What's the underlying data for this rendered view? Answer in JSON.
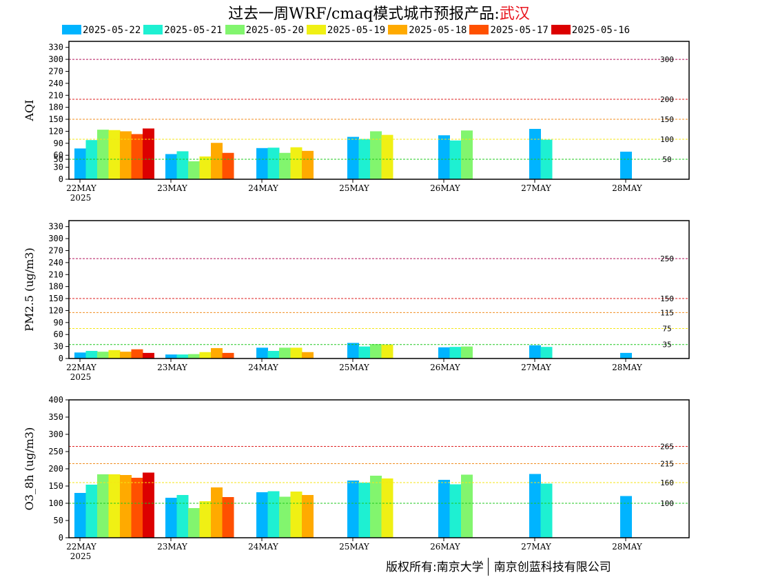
{
  "title": {
    "prefix": "过去一周WRF/cmaq模式城市预报产品:",
    "city": "武汉"
  },
  "copyright": {
    "left": "版权所有:南京大学",
    "right": "南京创蓝科技有限公司"
  },
  "colors": {
    "series": [
      "#00b4ff",
      "#1ef0d2",
      "#82f56e",
      "#f0f014",
      "#ffaa00",
      "#ff5000",
      "#dc0000"
    ],
    "axis": "#000000"
  },
  "chart_data": [
    {
      "type": "bar",
      "ylabel": "AQI",
      "ylim": [
        0,
        345
      ],
      "yticks": [
        0,
        30,
        50,
        60,
        90,
        120,
        150,
        180,
        210,
        240,
        270,
        300,
        330
      ],
      "categories": [
        "22MAY",
        "23MAY",
        "24MAY",
        "25MAY",
        "26MAY",
        "27MAY",
        "28MAY"
      ],
      "year_label": "2025",
      "thresholds": [
        {
          "value": 300,
          "label": "300",
          "color": "#b4145a"
        },
        {
          "value": 200,
          "label": "200",
          "color": "#dc1e1e"
        },
        {
          "value": 150,
          "label": "150",
          "color": "#f08c1e"
        },
        {
          "value": 100,
          "label": "100",
          "color": "#f5e614"
        },
        {
          "value": 50,
          "label": "50",
          "color": "#1ec81e"
        }
      ],
      "series": [
        {
          "name": "2025-05-22",
          "values": [
            77,
            63,
            78,
            106,
            110,
            126,
            69
          ]
        },
        {
          "name": "2025-05-21",
          "values": [
            98,
            70,
            79,
            101,
            97,
            99,
            null
          ]
        },
        {
          "name": "2025-05-20",
          "values": [
            124,
            45,
            66,
            120,
            122,
            null,
            null
          ]
        },
        {
          "name": "2025-05-19",
          "values": [
            123,
            57,
            80,
            111,
            null,
            null,
            null
          ]
        },
        {
          "name": "2025-05-18",
          "values": [
            120,
            91,
            71,
            null,
            null,
            null,
            null
          ]
        },
        {
          "name": "2025-05-17",
          "values": [
            113,
            66,
            null,
            null,
            null,
            null,
            null
          ]
        },
        {
          "name": "2025-05-16",
          "values": [
            127,
            null,
            null,
            null,
            null,
            null,
            null
          ]
        }
      ]
    },
    {
      "type": "bar",
      "ylabel": "PM2.5 (ug/m3)",
      "ylim": [
        0,
        345
      ],
      "yticks": [
        0,
        30,
        60,
        90,
        120,
        150,
        180,
        210,
        240,
        270,
        300,
        330
      ],
      "categories": [
        "22MAY",
        "23MAY",
        "24MAY",
        "25MAY",
        "26MAY",
        "27MAY",
        "28MAY"
      ],
      "year_label": "2025",
      "thresholds": [
        {
          "value": 250,
          "label": "250",
          "color": "#b4145a"
        },
        {
          "value": 150,
          "label": "150",
          "color": "#dc1e1e"
        },
        {
          "value": 115,
          "label": "115",
          "color": "#f08c1e"
        },
        {
          "value": 75,
          "label": "75",
          "color": "#f5e614"
        },
        {
          "value": 35,
          "label": "35",
          "color": "#1ec81e"
        }
      ],
      "series": [
        {
          "name": "2025-05-22",
          "values": [
            15,
            10,
            27,
            39,
            28,
            33,
            14
          ]
        },
        {
          "name": "2025-05-21",
          "values": [
            19,
            10,
            19,
            30,
            29,
            29,
            null
          ]
        },
        {
          "name": "2025-05-20",
          "values": [
            17,
            11,
            27,
            36,
            30,
            null,
            null
          ]
        },
        {
          "name": "2025-05-19",
          "values": [
            21,
            16,
            27,
            35,
            null,
            null,
            null
          ]
        },
        {
          "name": "2025-05-18",
          "values": [
            17,
            26,
            16,
            null,
            null,
            null,
            null
          ]
        },
        {
          "name": "2025-05-17",
          "values": [
            23,
            14,
            null,
            null,
            null,
            null,
            null
          ]
        },
        {
          "name": "2025-05-16",
          "values": [
            14,
            null,
            null,
            null,
            null,
            null,
            null
          ]
        }
      ]
    },
    {
      "type": "bar",
      "ylabel": "O3_8h (ug/m3)",
      "ylim": [
        0,
        400
      ],
      "yticks": [
        0,
        50,
        100,
        150,
        200,
        250,
        300,
        350,
        400
      ],
      "categories": [
        "22MAY",
        "23MAY",
        "24MAY",
        "25MAY",
        "26MAY",
        "27MAY",
        "28MAY"
      ],
      "year_label": "2025",
      "thresholds": [
        {
          "value": 265,
          "label": "265",
          "color": "#dc1e1e"
        },
        {
          "value": 215,
          "label": "215",
          "color": "#f08c1e"
        },
        {
          "value": 160,
          "label": "160",
          "color": "#f5e614"
        },
        {
          "value": 100,
          "label": "100",
          "color": "#1ec81e"
        }
      ],
      "series": [
        {
          "name": "2025-05-22",
          "values": [
            130,
            116,
            132,
            166,
            168,
            185,
            121
          ]
        },
        {
          "name": "2025-05-21",
          "values": [
            154,
            124,
            135,
            160,
            155,
            157,
            null
          ]
        },
        {
          "name": "2025-05-20",
          "values": [
            184,
            86,
            119,
            180,
            183,
            null,
            null
          ]
        },
        {
          "name": "2025-05-19",
          "values": [
            184,
            106,
            134,
            172,
            null,
            null,
            null
          ]
        },
        {
          "name": "2025-05-18",
          "values": [
            182,
            146,
            124,
            null,
            null,
            null,
            null
          ]
        },
        {
          "name": "2025-05-17",
          "values": [
            174,
            118,
            null,
            null,
            null,
            null,
            null
          ]
        },
        {
          "name": "2025-05-16",
          "values": [
            189,
            null,
            null,
            null,
            null,
            null,
            null
          ]
        }
      ]
    }
  ]
}
